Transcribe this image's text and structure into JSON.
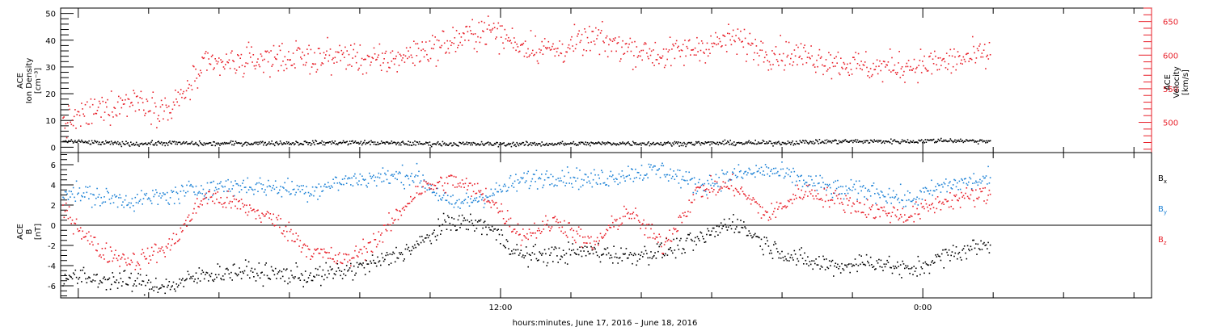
{
  "chart_data": [
    {
      "type": "scatter",
      "panel": "plasma",
      "ylabel_left": [
        "ACE",
        "Ion Density",
        "[cm⁻³]"
      ],
      "ylabel_right": [
        "ACE",
        "Velocity",
        "[km/s]"
      ],
      "yticks_left": [
        "0",
        "10",
        "20",
        "30",
        "40",
        "50"
      ],
      "yticks_right": [
        "500",
        "550",
        "600",
        "650"
      ],
      "ylim_left": [
        -2,
        52
      ],
      "ylim_right": [
        455,
        670
      ],
      "grid": false,
      "series": [
        {
          "name": "Density",
          "axis": "left",
          "color": "#000000",
          "x_hours": [
            0,
            1,
            2,
            3,
            4,
            5,
            6,
            7,
            8,
            9,
            10,
            11,
            12,
            13,
            14,
            15,
            16,
            17,
            18,
            19,
            20,
            21,
            22,
            23,
            24,
            25,
            26
          ],
          "values": [
            2.5,
            1.8,
            1.5,
            1.8,
            1.5,
            1.7,
            1.8,
            1.8,
            2.0,
            1.8,
            1.6,
            1.5,
            1.4,
            1.4,
            1.5,
            1.6,
            1.7,
            1.6,
            1.7,
            1.8,
            1.8,
            2.1,
            2.4,
            2.4,
            2.4,
            2.8,
            2.5
          ]
        },
        {
          "name": "Velocity",
          "axis": "right",
          "color": "#e8202a",
          "x_hours": [
            0,
            1,
            2,
            3,
            4,
            5,
            6,
            7,
            8,
            9,
            10,
            11,
            12,
            13,
            14,
            15,
            16,
            17,
            18,
            19,
            20,
            21,
            22,
            23,
            24,
            25,
            26
          ],
          "values": [
            500,
            520,
            535,
            518,
            585,
            590,
            598,
            596,
            600,
            590,
            605,
            620,
            640,
            615,
            608,
            625,
            612,
            600,
            612,
            625,
            605,
            600,
            590,
            582,
            585,
            590,
            600
          ]
        }
      ]
    },
    {
      "type": "scatter",
      "panel": "magnetic_field",
      "ylabel_left": [
        "ACE",
        "B",
        "[nT]"
      ],
      "yticks_left": [
        "-6",
        "-4",
        "-2",
        "0",
        "2",
        "4",
        "6"
      ],
      "ylim_left": [
        -7.2,
        7.2
      ],
      "zero_line": true,
      "legend": "right",
      "grid": false,
      "series": [
        {
          "name": "Bx",
          "name_base": "B",
          "name_sub": "x",
          "color": "#000000",
          "x_hours": [
            0,
            1,
            2,
            3,
            4,
            5,
            6,
            7,
            8,
            9,
            10,
            11,
            12,
            13,
            14,
            15,
            16,
            17,
            18,
            19,
            20,
            21,
            22,
            23,
            24,
            25,
            26
          ],
          "values": [
            -5,
            -5.3,
            -5.6,
            -6.0,
            -4.8,
            -4.5,
            -4.8,
            -5.0,
            -4.5,
            -3.5,
            -2.0,
            0.5,
            0.0,
            -3.0,
            -2.8,
            -2.5,
            -3.0,
            -2.5,
            -1.5,
            0.5,
            -2.0,
            -3.5,
            -4.0,
            -3.5,
            -4.5,
            -3.0,
            -2.0
          ]
        },
        {
          "name": "By",
          "name_base": "B",
          "name_sub": "y",
          "color": "#1f83d6",
          "x_hours": [
            0,
            1,
            2,
            3,
            4,
            5,
            6,
            7,
            8,
            9,
            10,
            11,
            12,
            13,
            14,
            15,
            16,
            17,
            18,
            19,
            20,
            21,
            22,
            23,
            24,
            25,
            26
          ],
          "values": [
            3.5,
            2.8,
            2.5,
            3.0,
            3.8,
            4.0,
            3.8,
            3.5,
            4.5,
            4.8,
            5.0,
            2.0,
            3.0,
            4.5,
            5.0,
            4.5,
            5.2,
            5.5,
            4.0,
            5.0,
            5.5,
            4.5,
            3.5,
            3.5,
            2.5,
            4.0,
            4.5
          ]
        },
        {
          "name": "Bz",
          "name_base": "B",
          "name_sub": "z",
          "color": "#e8202a",
          "x_hours": [
            0,
            1,
            2,
            3,
            4,
            5,
            6,
            7,
            8,
            9,
            10,
            11,
            12,
            13,
            14,
            15,
            16,
            17,
            18,
            19,
            20,
            21,
            22,
            23,
            24,
            25,
            26
          ],
          "values": [
            1.5,
            -2.5,
            -3.5,
            -2.0,
            3.0,
            2.0,
            0.5,
            -2.5,
            -3.5,
            -1.0,
            3.5,
            4.5,
            3.0,
            -1.0,
            0.5,
            -2.0,
            1.5,
            -2.0,
            3.5,
            4.0,
            1.0,
            3.5,
            2.5,
            1.5,
            1.0,
            2.5,
            3.0
          ]
        }
      ]
    }
  ],
  "x_axis": {
    "range_hours": [
      -12.5,
      18.5
    ],
    "data_end_hour": 13.9,
    "tick_labels": [
      {
        "hour": 0,
        "label": "12:00"
      },
      {
        "hour": 12,
        "label": "0:00"
      }
    ],
    "minor_every_hours": 2
  },
  "xlabel": "hours:minutes, June 17, 2016 – June 18, 2016"
}
